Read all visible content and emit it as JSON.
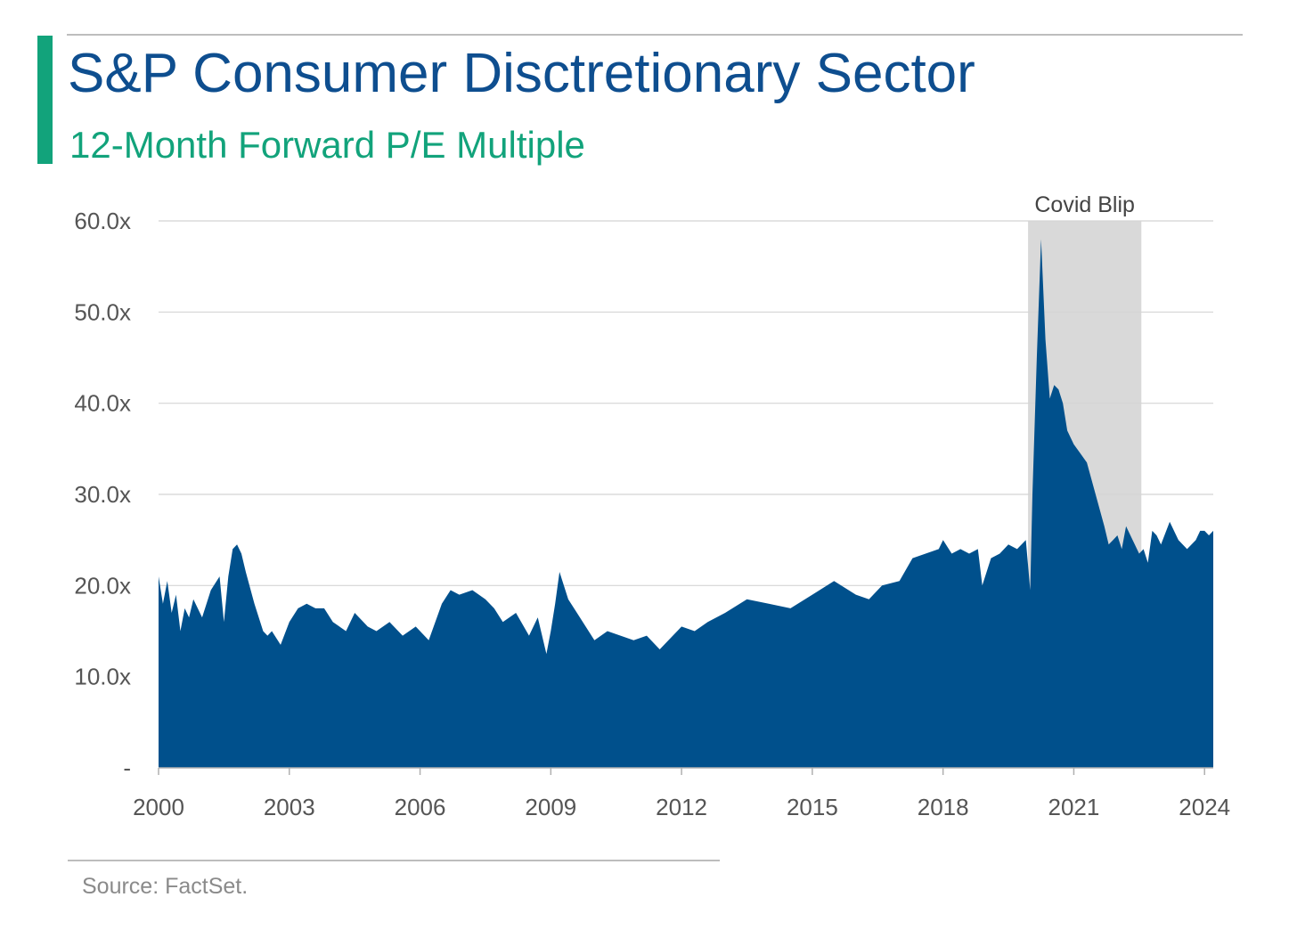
{
  "header": {
    "title": "S&P Consumer Disctretionary Sector",
    "subtitle": "12-Month Forward P/E Multiple"
  },
  "footer": {
    "source": "Source: FactSet."
  },
  "colors": {
    "area": "#00508c",
    "title": "#0e4e8f",
    "accent": "#12a37b",
    "shade": "#d9d9d9",
    "grid": "#d4d4d4"
  },
  "chart_data": {
    "type": "area",
    "title": "S&P Consumer Disctretionary Sector",
    "subtitle": "12-Month Forward P/E Multiple",
    "ylim": [
      0,
      60
    ],
    "xlim": [
      2000.0,
      2024.2
    ],
    "grid": "horizontal",
    "y_ticks": [
      {
        "value": 0,
        "label": "-"
      },
      {
        "value": 10,
        "label": "10.0x"
      },
      {
        "value": 20,
        "label": "20.0x"
      },
      {
        "value": 30,
        "label": "30.0x"
      },
      {
        "value": 40,
        "label": "40.0x"
      },
      {
        "value": 50,
        "label": "50.0x"
      },
      {
        "value": 60,
        "label": "60.0x"
      }
    ],
    "x_ticks": [
      {
        "value": 2000,
        "label": "2000"
      },
      {
        "value": 2003,
        "label": "2003"
      },
      {
        "value": 2006,
        "label": "2006"
      },
      {
        "value": 2009,
        "label": "2009"
      },
      {
        "value": 2012,
        "label": "2012"
      },
      {
        "value": 2015,
        "label": "2015"
      },
      {
        "value": 2018,
        "label": "2018"
      },
      {
        "value": 2021,
        "label": "2021"
      },
      {
        "value": 2024,
        "label": "2024"
      }
    ],
    "annotation": {
      "label": "Covid Blip",
      "x_start": 2019.95,
      "x_end": 2022.55
    },
    "x": [
      2000.0,
      2000.1,
      2000.2,
      2000.3,
      2000.4,
      2000.5,
      2000.6,
      2000.7,
      2000.8,
      2001.0,
      2001.2,
      2001.4,
      2001.5,
      2001.6,
      2001.7,
      2001.8,
      2001.9,
      2002.0,
      2002.2,
      2002.4,
      2002.5,
      2002.6,
      2002.8,
      2003.0,
      2003.2,
      2003.4,
      2003.6,
      2003.8,
      2004.0,
      2004.3,
      2004.5,
      2004.8,
      2005.0,
      2005.3,
      2005.6,
      2005.9,
      2006.2,
      2006.5,
      2006.7,
      2006.9,
      2007.2,
      2007.5,
      2007.7,
      2007.9,
      2008.2,
      2008.5,
      2008.7,
      2008.9,
      2009.0,
      2009.1,
      2009.2,
      2009.4,
      2009.6,
      2009.8,
      2010.0,
      2010.3,
      2010.6,
      2010.9,
      2011.2,
      2011.5,
      2011.7,
      2012.0,
      2012.3,
      2012.6,
      2013.0,
      2013.5,
      2014.0,
      2014.5,
      2015.0,
      2015.5,
      2016.0,
      2016.3,
      2016.6,
      2017.0,
      2017.3,
      2017.6,
      2017.9,
      2018.0,
      2018.2,
      2018.4,
      2018.6,
      2018.8,
      2018.9,
      2019.1,
      2019.3,
      2019.5,
      2019.7,
      2019.9,
      2020.0,
      2020.05,
      2020.15,
      2020.25,
      2020.35,
      2020.45,
      2020.55,
      2020.65,
      2020.75,
      2020.85,
      2021.0,
      2021.15,
      2021.3,
      2021.5,
      2021.7,
      2021.8,
      2021.9,
      2022.0,
      2022.1,
      2022.2,
      2022.3,
      2022.4,
      2022.5,
      2022.6,
      2022.7,
      2022.8,
      2022.9,
      2023.0,
      2023.2,
      2023.4,
      2023.6,
      2023.8,
      2023.9,
      2024.0,
      2024.1,
      2024.2
    ],
    "values": [
      21.0,
      18.0,
      20.5,
      17.0,
      19.0,
      15.0,
      17.5,
      16.5,
      18.5,
      16.5,
      19.5,
      21.0,
      16.0,
      21.0,
      24.0,
      24.5,
      23.5,
      21.5,
      18.0,
      15.0,
      14.5,
      15.0,
      13.5,
      16.0,
      17.5,
      18.0,
      17.5,
      17.5,
      16.0,
      15.0,
      17.0,
      15.5,
      15.0,
      16.0,
      14.5,
      15.5,
      14.0,
      18.0,
      19.5,
      19.0,
      19.5,
      18.5,
      17.5,
      16.0,
      17.0,
      14.5,
      16.5,
      12.5,
      15.0,
      18.0,
      21.5,
      18.5,
      17.0,
      15.5,
      14.0,
      15.0,
      14.5,
      14.0,
      14.5,
      13.0,
      14.0,
      15.5,
      15.0,
      16.0,
      17.0,
      18.5,
      18.0,
      17.5,
      19.0,
      20.5,
      19.0,
      18.5,
      20.0,
      20.5,
      23.0,
      23.5,
      24.0,
      25.0,
      23.5,
      24.0,
      23.5,
      24.0,
      20.0,
      23.0,
      23.5,
      24.5,
      24.0,
      25.0,
      19.5,
      30.0,
      45.0,
      58.0,
      47.0,
      40.5,
      42.0,
      41.5,
      40.0,
      37.0,
      35.5,
      34.5,
      33.5,
      30.0,
      26.5,
      24.5,
      25.0,
      25.5,
      24.0,
      26.5,
      25.5,
      24.5,
      23.5,
      24.0,
      22.5,
      26.0,
      25.5,
      24.5,
      27.0,
      25.0,
      24.0,
      25.0,
      26.0,
      26.0,
      25.5,
      26.0
    ]
  }
}
